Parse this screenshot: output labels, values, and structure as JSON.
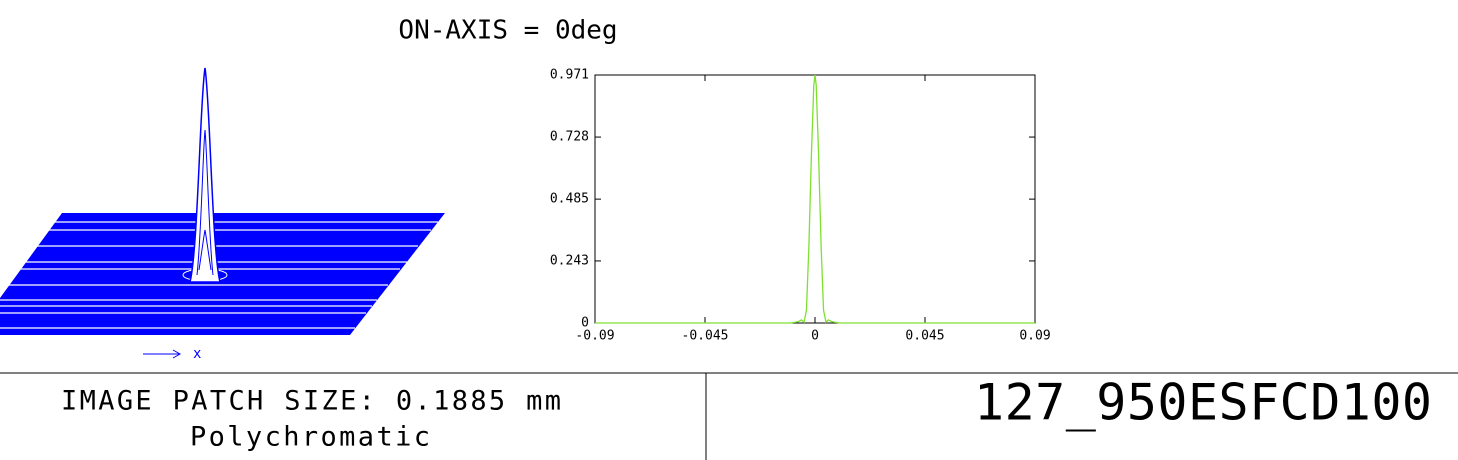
{
  "chart_data": {
    "type": "line",
    "title": "ON-AXIS = 0deg",
    "series": [
      {
        "color": "#7fe030",
        "x": [
          -0.09,
          -0.01,
          -0.007,
          -0.0055,
          -0.0045,
          -0.0035,
          -0.0025,
          -0.0015,
          -0.0005,
          0,
          0.0005,
          0.0015,
          0.0025,
          0.0035,
          0.0045,
          0.0055,
          0.007,
          0.01,
          0.09
        ],
        "values": [
          0,
          0,
          0.005,
          0.012,
          0.003,
          0.05,
          0.3,
          0.65,
          0.93,
          0.971,
          0.93,
          0.65,
          0.3,
          0.05,
          0.003,
          0.012,
          0.005,
          0,
          0
        ]
      }
    ],
    "xlim": [
      -0.09,
      0.09
    ],
    "xticks": [
      -0.09,
      -0.045,
      0,
      0.045,
      0.09
    ],
    "ylim": [
      0,
      0.971
    ],
    "yticks": [
      0,
      0.243,
      0.485,
      0.728,
      0.971
    ]
  },
  "surface": {
    "axis_label": "x"
  },
  "footer": {
    "patch_size": "IMAGE PATCH SIZE: 0.1885 mm",
    "mode": "Polychromatic",
    "file": "127_950ESFCD100"
  }
}
